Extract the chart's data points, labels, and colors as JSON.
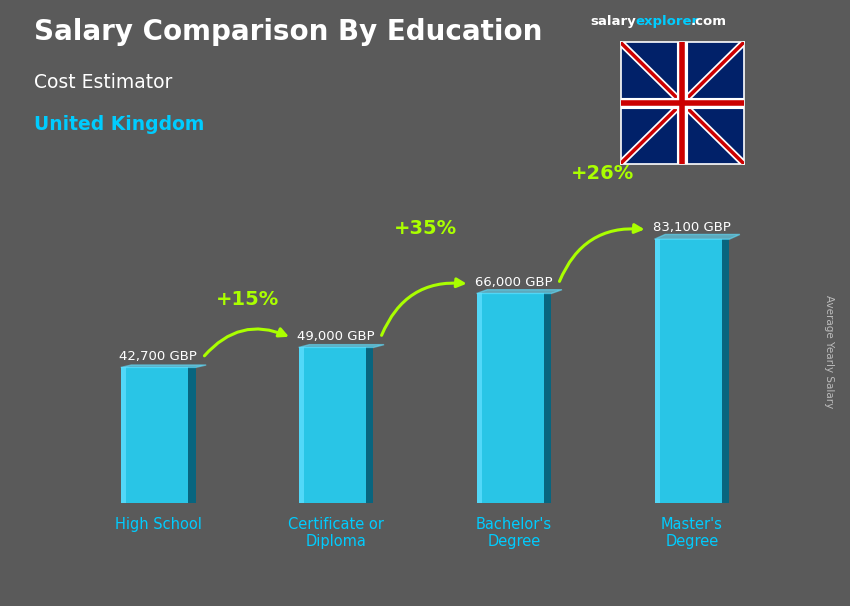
{
  "title_main": "Salary Comparison By Education",
  "title_sub": "Cost Estimator",
  "title_country": "United Kingdom",
  "ylabel": "Average Yearly Salary",
  "categories": [
    "High School",
    "Certificate or\nDiploma",
    "Bachelor's\nDegree",
    "Master's\nDegree"
  ],
  "values": [
    42700,
    49000,
    66000,
    83100
  ],
  "value_labels": [
    "42,700 GBP",
    "49,000 GBP",
    "66,000 GBP",
    "83,100 GBP"
  ],
  "pct_labels": [
    "+15%",
    "+35%",
    "+26%"
  ],
  "bar_color_main": "#29c5e6",
  "bar_color_light": "#60dfff",
  "bar_color_dark": "#006688",
  "bar_color_side": "#004d66",
  "bg_color": "#5a5a5a",
  "title_color": "#ffffff",
  "subtitle_color": "#ffffff",
  "country_color": "#00ccff",
  "value_label_color": "#ffffff",
  "pct_color": "#aaff00",
  "xlabel_color": "#00ccff",
  "ylabel_color": "#cccccc",
  "ylim_max": 105000,
  "bar_width": 0.42
}
